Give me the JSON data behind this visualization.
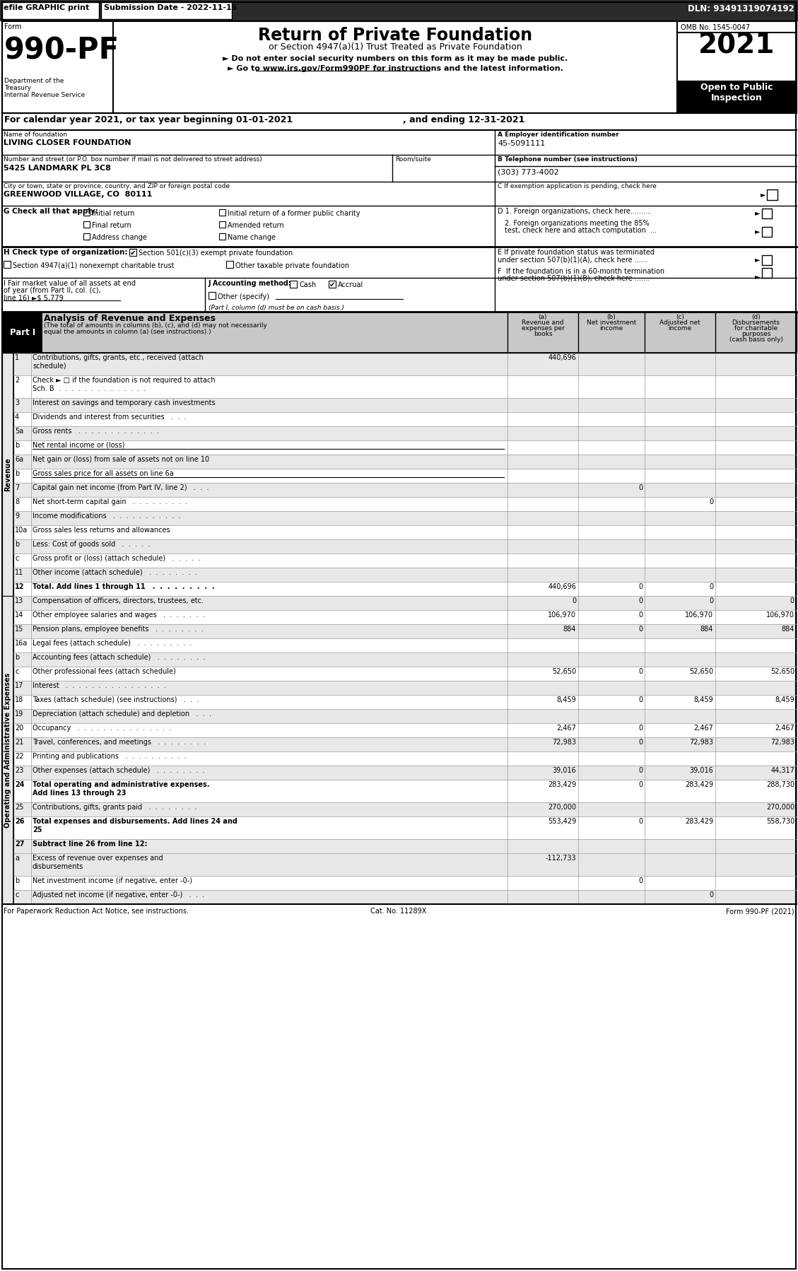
{
  "rows": [
    {
      "num": "1",
      "desc": "Contributions, gifts, grants, etc., received (attach\nschedule)",
      "a": "440,696",
      "b": "",
      "c": "",
      "d": "",
      "shade": true
    },
    {
      "num": "2",
      "desc": "Check ► □ if the foundation is not required to attach\nSch. B  .  .  .  .  .  .  .  .  .  .  .  .  .  .",
      "a": "",
      "b": "",
      "c": "",
      "d": "",
      "shade": false,
      "not_bold_in_desc": true
    },
    {
      "num": "3",
      "desc": "Interest on savings and temporary cash investments",
      "a": "",
      "b": "",
      "c": "",
      "d": "",
      "shade": true
    },
    {
      "num": "4",
      "desc": "Dividends and interest from securities   .  .  .",
      "a": "",
      "b": "",
      "c": "",
      "d": "",
      "shade": false
    },
    {
      "num": "5a",
      "desc": "Gross rents   .  .  .  .  .  .  .  .  .  .  .  .  .",
      "a": "",
      "b": "",
      "c": "",
      "d": "",
      "shade": true
    },
    {
      "num": "b",
      "desc": "Net rental income or (loss)",
      "a": "",
      "b": "",
      "c": "",
      "d": "",
      "shade": false,
      "underline_desc": true
    },
    {
      "num": "6a",
      "desc": "Net gain or (loss) from sale of assets not on line 10",
      "a": "",
      "b": "",
      "c": "",
      "d": "",
      "shade": true
    },
    {
      "num": "b",
      "desc": "Gross sales price for all assets on line 6a",
      "a": "",
      "b": "",
      "c": "",
      "d": "",
      "shade": false,
      "underline_desc": true
    },
    {
      "num": "7",
      "desc": "Capital gain net income (from Part IV, line 2)   .  .  .",
      "a": "",
      "b": "0",
      "c": "",
      "d": "",
      "shade": true
    },
    {
      "num": "8",
      "desc": "Net short-term capital gain   .  .  .  .  .  .  .  .  .",
      "a": "",
      "b": "",
      "c": "0",
      "d": "",
      "shade": false
    },
    {
      "num": "9",
      "desc": "Income modifications   .  .  .  .  .  .  .  .  .  .  .",
      "a": "",
      "b": "",
      "c": "",
      "d": "",
      "shade": true
    },
    {
      "num": "10a",
      "desc": "Gross sales less returns and allowances",
      "a": "",
      "b": "",
      "c": "",
      "d": "",
      "shade": false,
      "has_box": true
    },
    {
      "num": "b",
      "desc": "Less: Cost of goods sold   .  .  .  .  .",
      "a": "",
      "b": "",
      "c": "",
      "d": "",
      "shade": true,
      "has_box": true
    },
    {
      "num": "c",
      "desc": "Gross profit or (loss) (attach schedule)   .  .  .  .  .",
      "a": "",
      "b": "",
      "c": "",
      "d": "",
      "shade": false
    },
    {
      "num": "11",
      "desc": "Other income (attach schedule)   .  .  .  .  .  .  .  .",
      "a": "",
      "b": "",
      "c": "",
      "d": "",
      "shade": true
    },
    {
      "num": "12",
      "desc": "Total. Add lines 1 through 11   .  .  .  .  .  .  .  .  .",
      "a": "440,696",
      "b": "0",
      "c": "0",
      "d": "",
      "bold": true,
      "shade": false
    },
    {
      "num": "13",
      "desc": "Compensation of officers, directors, trustees, etc.",
      "a": "0",
      "b": "0",
      "c": "0",
      "d": "0",
      "shade": true
    },
    {
      "num": "14",
      "desc": "Other employee salaries and wages   .  .  .  .  .  .  .",
      "a": "106,970",
      "b": "0",
      "c": "106,970",
      "d": "106,970",
      "shade": false
    },
    {
      "num": "15",
      "desc": "Pension plans, employee benefits   .  .  .  .  .  .  .  .",
      "a": "884",
      "b": "0",
      "c": "884",
      "d": "884",
      "shade": true
    },
    {
      "num": "16a",
      "desc": "Legal fees (attach schedule)   .  .  .  .  .  .  .  .  .",
      "a": "",
      "b": "",
      "c": "",
      "d": "",
      "shade": false
    },
    {
      "num": "b",
      "desc": "Accounting fees (attach schedule)   .  .  .  .  .  .  .  .",
      "a": "",
      "b": "",
      "c": "",
      "d": "",
      "shade": true
    },
    {
      "num": "c",
      "desc": "Other professional fees (attach schedule)",
      "a": "52,650",
      "b": "0",
      "c": "52,650",
      "d": "52,650",
      "shade": false
    },
    {
      "num": "17",
      "desc": "Interest   .  .  .  .  .  .  .  .  .  .  .  .  .  .  .  .",
      "a": "",
      "b": "",
      "c": "",
      "d": "",
      "shade": true
    },
    {
      "num": "18",
      "desc": "Taxes (attach schedule) (see instructions)   .  .  .",
      "a": "8,459",
      "b": "0",
      "c": "8,459",
      "d": "8,459",
      "shade": false
    },
    {
      "num": "19",
      "desc": "Depreciation (attach schedule) and depletion   .  .  .",
      "a": "",
      "b": "",
      "c": "",
      "d": "",
      "shade": true
    },
    {
      "num": "20",
      "desc": "Occupancy   .  .  .  .  .  .  .  .  .  .  .  .  .  .  .",
      "a": "2,467",
      "b": "0",
      "c": "2,467",
      "d": "2,467",
      "shade": false
    },
    {
      "num": "21",
      "desc": "Travel, conferences, and meetings   .  .  .  .  .  .  .  .",
      "a": "72,983",
      "b": "0",
      "c": "72,983",
      "d": "72,983",
      "shade": true
    },
    {
      "num": "22",
      "desc": "Printing and publications   .  .  .  .  .  .  .  .  .  .",
      "a": "",
      "b": "",
      "c": "",
      "d": "",
      "shade": false
    },
    {
      "num": "23",
      "desc": "Other expenses (attach schedule)   .  .  .  .  .  .  .  .",
      "a": "39,016",
      "b": "0",
      "c": "39,016",
      "d": "44,317",
      "shade": true
    },
    {
      "num": "24",
      "desc": "Total operating and administrative expenses.\nAdd lines 13 through 23",
      "a": "283,429",
      "b": "0",
      "c": "283,429",
      "d": "288,730",
      "bold": true,
      "shade": false
    },
    {
      "num": "25",
      "desc": "Contributions, gifts, grants paid   .  .  .  .  .  .  .  .",
      "a": "270,000",
      "b": "",
      "c": "",
      "d": "270,000",
      "shade": true
    },
    {
      "num": "26",
      "desc": "Total expenses and disbursements. Add lines 24 and\n25",
      "a": "553,429",
      "b": "0",
      "c": "283,429",
      "d": "558,730",
      "bold": true,
      "shade": false
    },
    {
      "num": "27",
      "desc": "Subtract line 26 from line 12:",
      "a": "",
      "b": "",
      "c": "",
      "d": "",
      "bold": true,
      "shade": true,
      "header_only": true
    },
    {
      "num": "a",
      "desc": "Excess of revenue over expenses and\ndisbursements",
      "a": "-112,733",
      "b": "",
      "c": "",
      "d": "",
      "shade": true
    },
    {
      "num": "b",
      "desc": "Net investment income (if negative, enter -0-)",
      "a": "",
      "b": "0",
      "c": "",
      "d": "",
      "shade": false
    },
    {
      "num": "c",
      "desc": "Adjusted net income (if negative, enter -0-)   .  .  .",
      "a": "",
      "b": "",
      "c": "0",
      "d": "",
      "shade": true
    }
  ]
}
